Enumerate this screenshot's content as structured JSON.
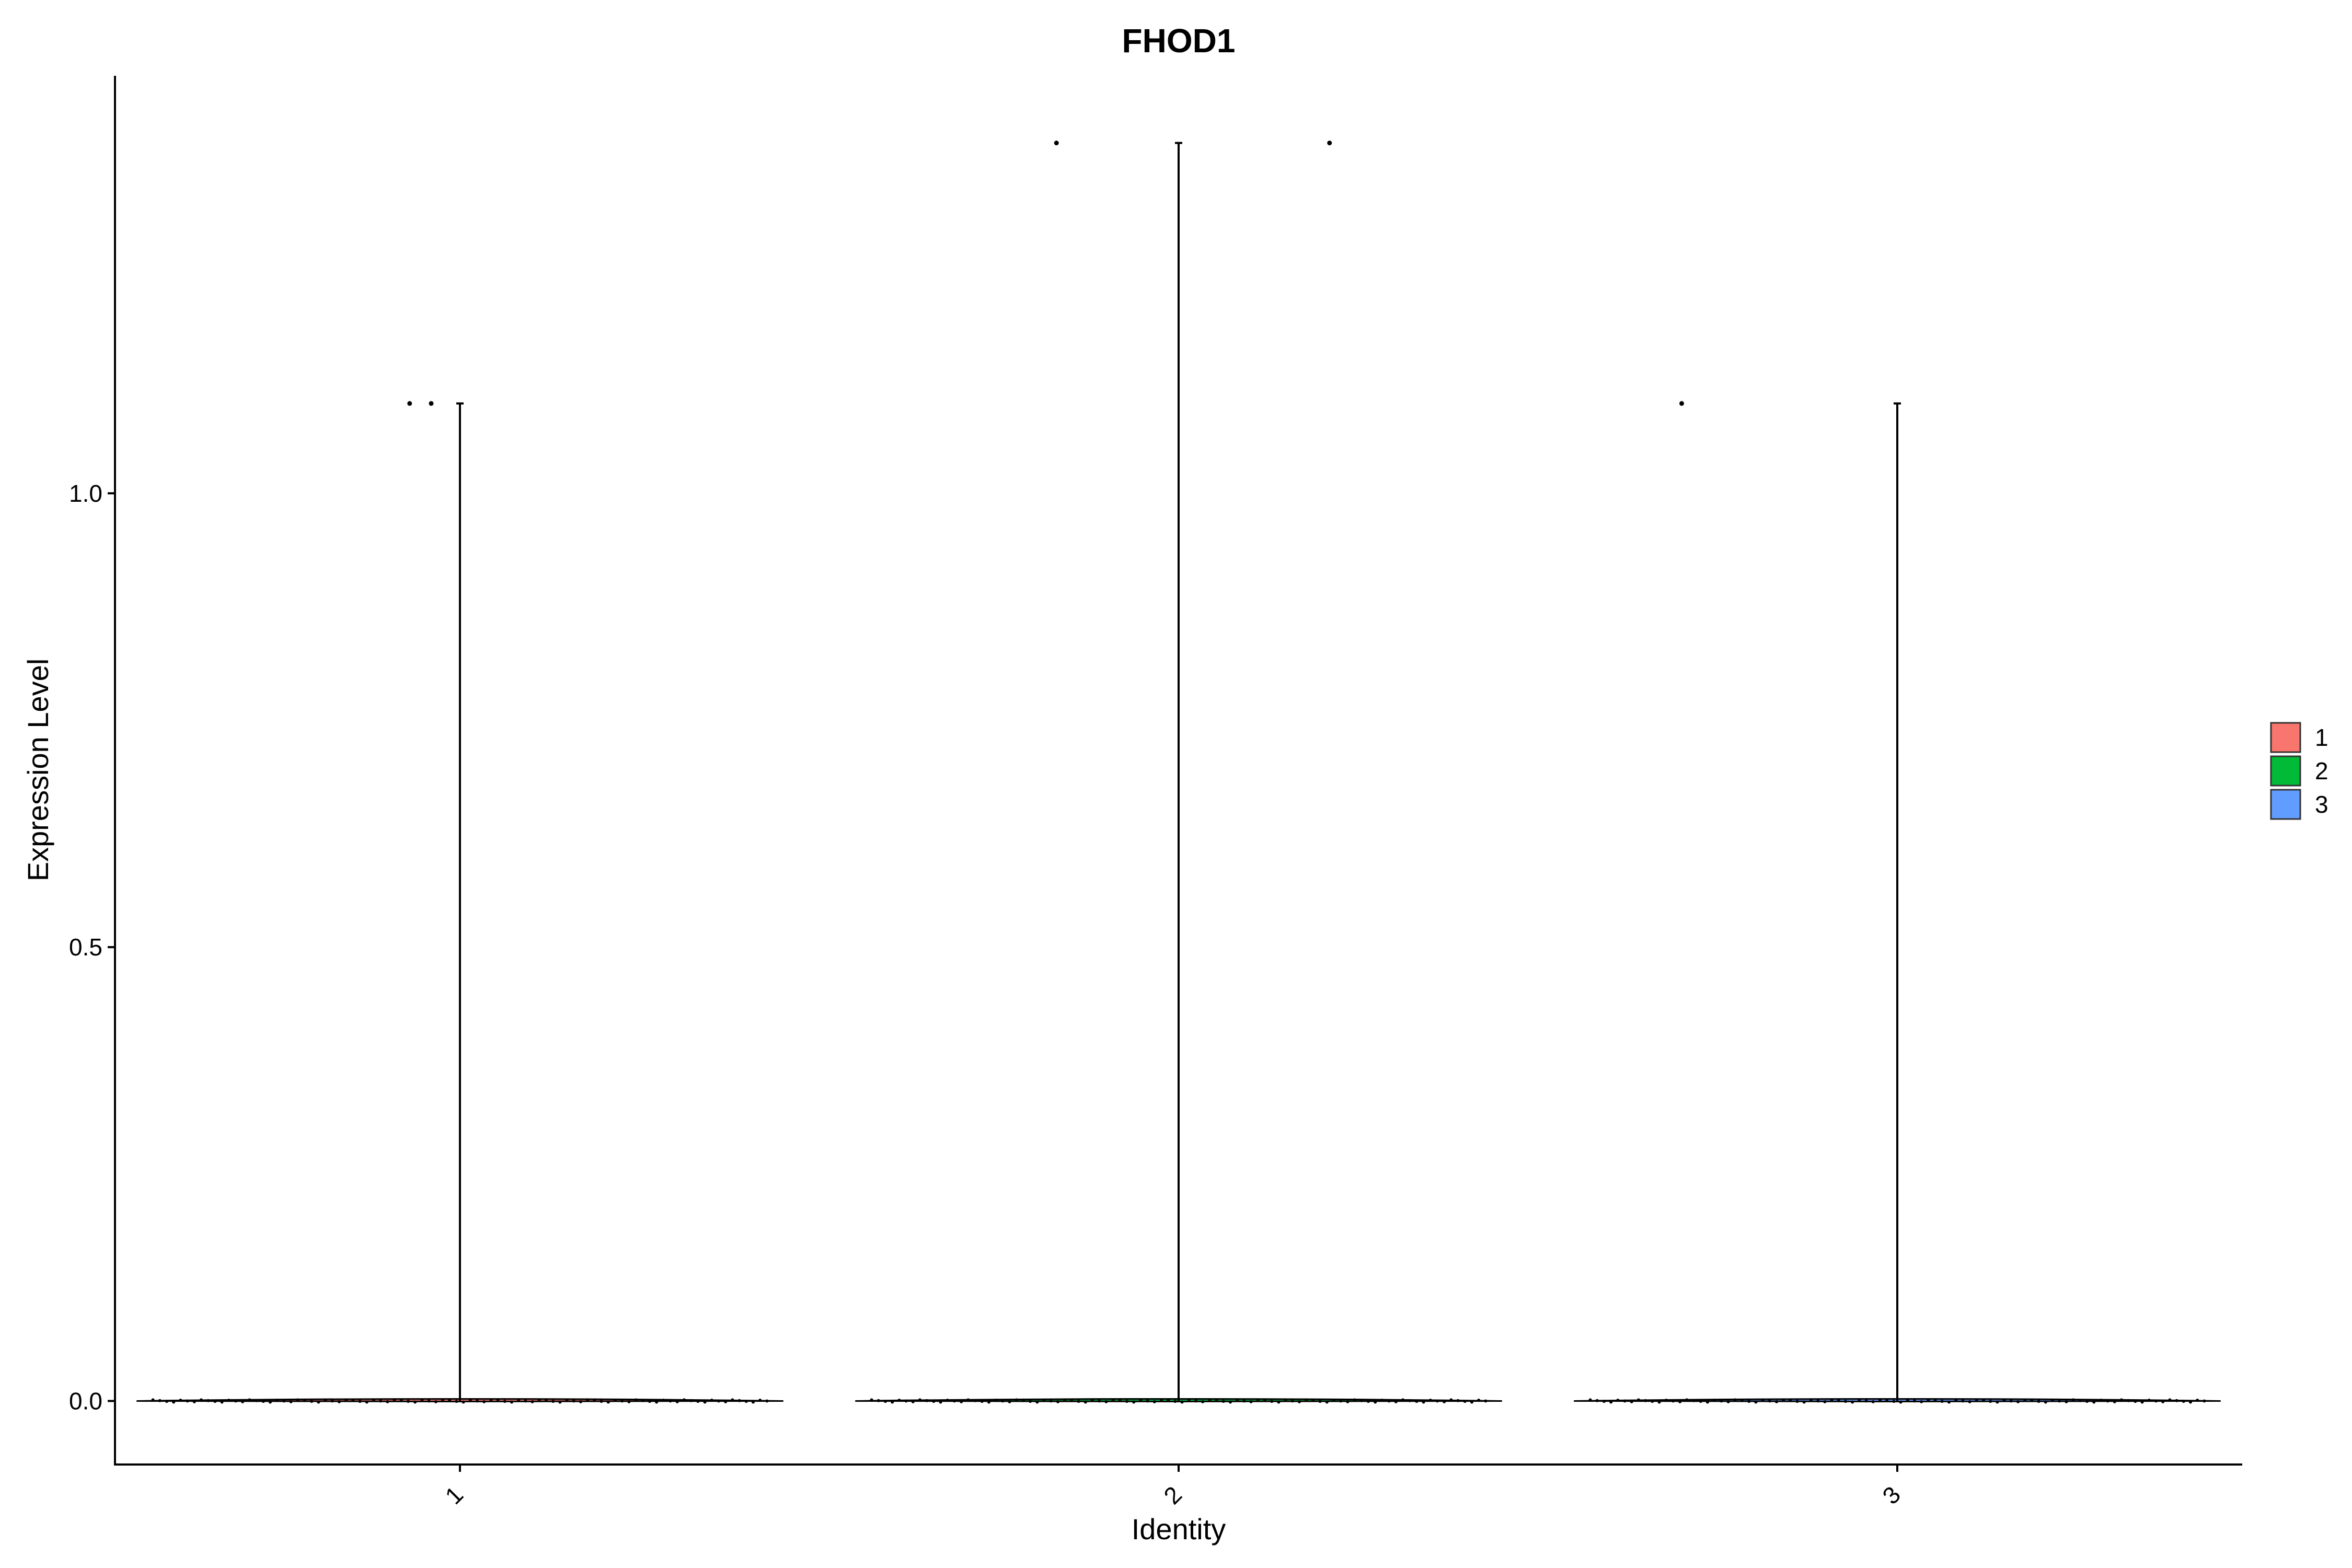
{
  "chart_data": {
    "type": "violin",
    "title": "FHOD1",
    "xlabel": "Identity",
    "ylabel": "Expression Level",
    "categories": [
      "1",
      "2",
      "3"
    ],
    "ylim": [
      -0.07,
      1.46
    ],
    "yticks": [
      0.0,
      0.5,
      1.0
    ],
    "ytick_labels": [
      "0.0",
      "0.5",
      "1.0"
    ],
    "grid": false,
    "legend": {
      "position": "right",
      "entries": [
        {
          "label": "1",
          "color": "#F8766D"
        },
        {
          "label": "2",
          "color": "#00BA38"
        },
        {
          "label": "3",
          "color": "#619CFF"
        }
      ]
    },
    "series": [
      {
        "category": "1",
        "color": "#F8766D",
        "max": 1.099,
        "base": 0.0,
        "outliers": [
          {
            "x_offset": -0.07,
            "y": 1.099
          },
          {
            "x_offset": -0.04,
            "y": 1.099
          }
        ]
      },
      {
        "category": "2",
        "color": "#00BA38",
        "max": 1.386,
        "base": 0.0,
        "outliers": [
          {
            "x_offset": -0.17,
            "y": 1.386
          },
          {
            "x_offset": 0.21,
            "y": 1.386
          }
        ]
      },
      {
        "category": "3",
        "color": "#619CFF",
        "max": 1.099,
        "base": 0.0,
        "outliers": [
          {
            "x_offset": -0.3,
            "y": 1.099
          }
        ]
      }
    ]
  }
}
